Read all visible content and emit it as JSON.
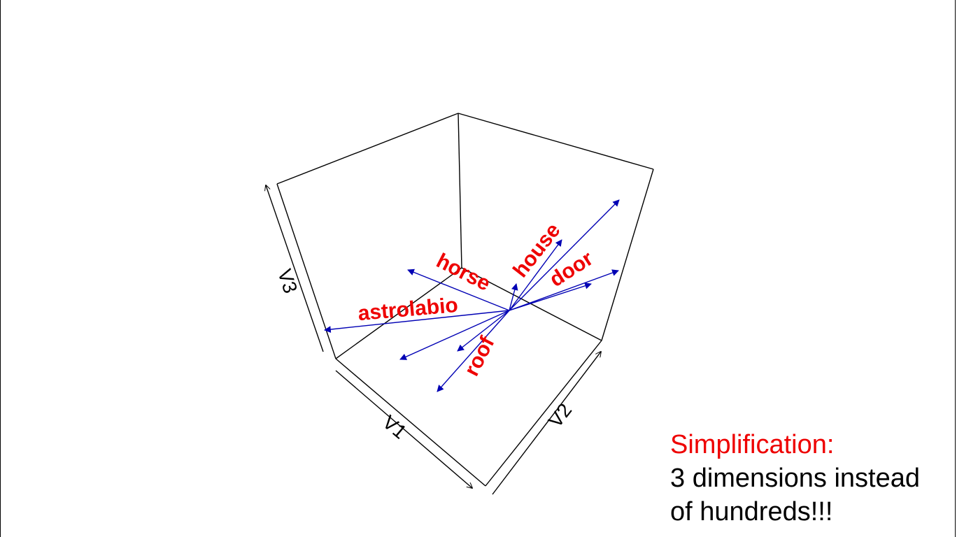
{
  "colors": {
    "word": "#ee0000",
    "vector": "#0000b4",
    "box": "#000000",
    "headline": "#ee0000"
  },
  "plot": {
    "axes": {
      "x": "V1",
      "y": "V2",
      "z": "V3"
    },
    "words": [
      {
        "id": "horse",
        "label": "horse"
      },
      {
        "id": "house",
        "label": "house"
      },
      {
        "id": "door",
        "label": "door"
      },
      {
        "id": "astrolabio",
        "label": "astrolabio"
      },
      {
        "id": "roof",
        "label": "roof"
      }
    ]
  },
  "caption": {
    "headline": "Simplification:",
    "lines": [
      "3 dimensions instead",
      "of hundreds!!!"
    ]
  }
}
